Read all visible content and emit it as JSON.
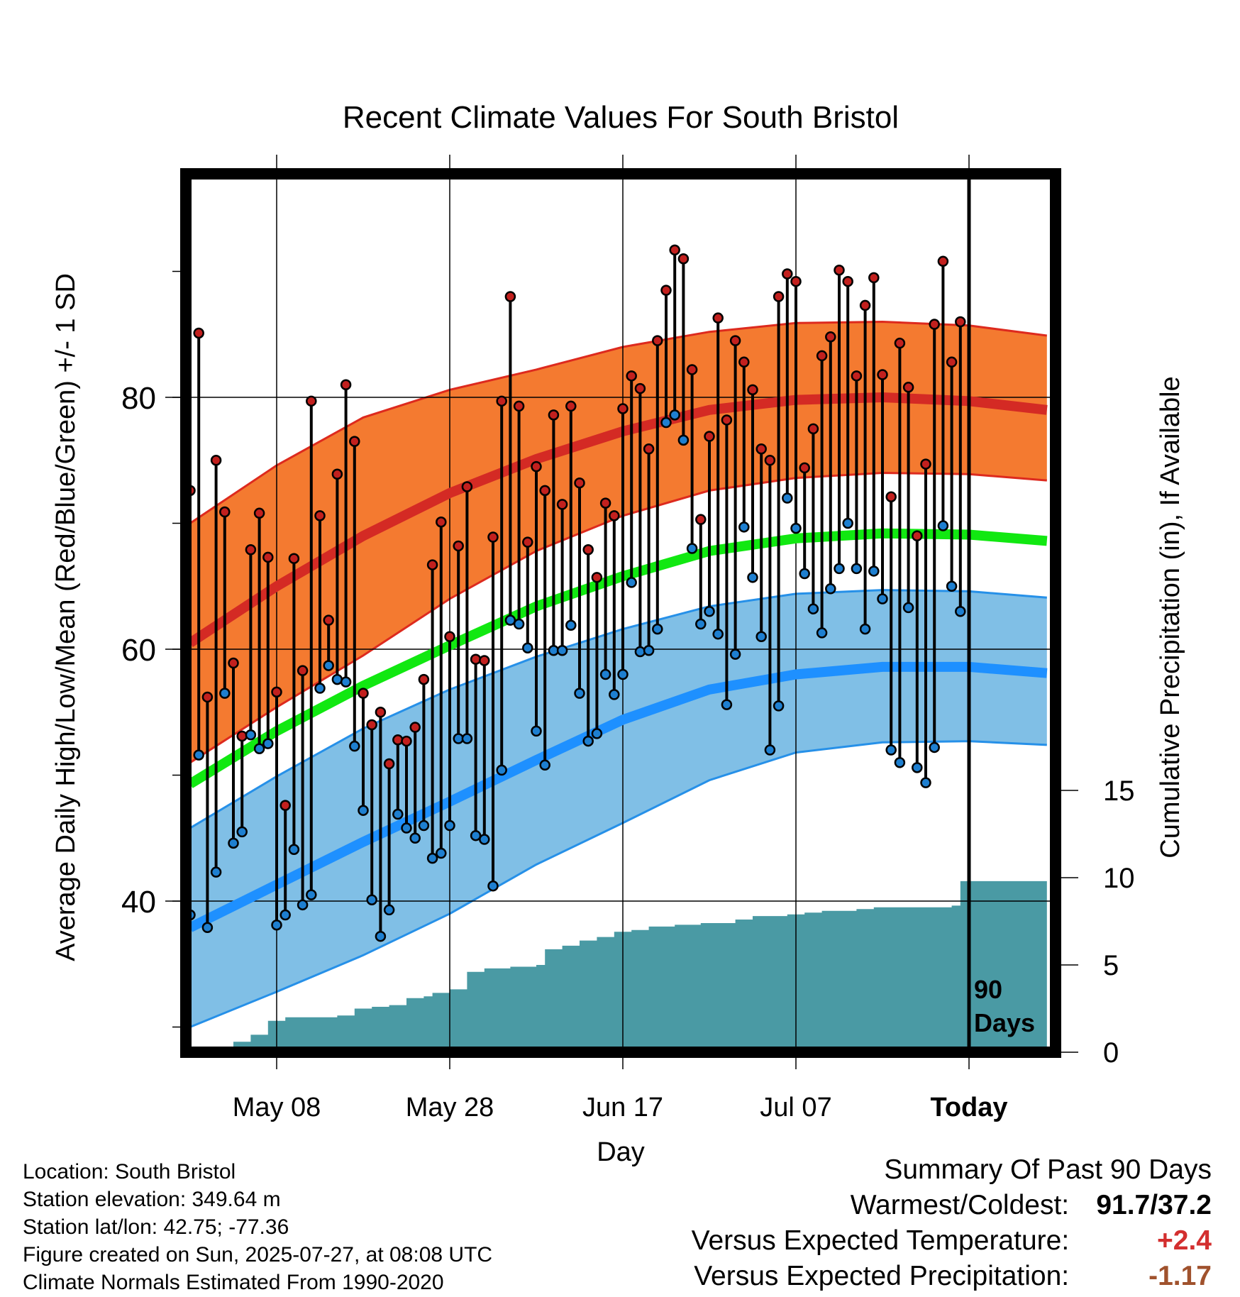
{
  "chart_data": {
    "type": "line",
    "title": "Recent Climate Values For South Bristol",
    "xlabel": "Day",
    "ylabel": "Average Daily High/Low/Mean (Red/Blue/Green) +/- 1 SD",
    "y2label": "Cumulative Precipitation (in), If Available",
    "x_range_days": [
      -90,
      9
    ],
    "ylim": [
      28,
      97
    ],
    "y2lim": [
      0,
      20.5
    ],
    "x_tick_labels": [
      {
        "day": -80,
        "label": "May 08"
      },
      {
        "day": -60,
        "label": "May 28"
      },
      {
        "day": -40,
        "label": "Jun 17"
      },
      {
        "day": -20,
        "label": "Jul 07"
      },
      {
        "day": 0,
        "label": "Today"
      }
    ],
    "y_tick_labels": [
      40,
      60,
      80
    ],
    "y2_tick_labels": [
      0,
      5,
      10,
      15
    ],
    "grid": true,
    "today_marker": {
      "day": 0,
      "label": [
        "90",
        "Days"
      ]
    },
    "normals": {
      "days": [
        -90,
        -80,
        -70,
        -60,
        -50,
        -40,
        -30,
        -20,
        -10,
        0,
        9
      ],
      "high_mean": [
        60.5,
        65.0,
        69.0,
        72.4,
        75.1,
        77.3,
        79.0,
        79.8,
        80.0,
        79.7,
        79.0
      ],
      "high_upper": [
        70.0,
        74.6,
        78.4,
        80.6,
        82.2,
        84.0,
        85.2,
        85.9,
        86.0,
        85.7,
        84.9
      ],
      "high_lower": [
        51.0,
        55.4,
        59.5,
        64.0,
        67.8,
        70.6,
        72.6,
        73.6,
        74.0,
        73.9,
        73.4
      ],
      "low_mean": [
        37.9,
        41.3,
        44.7,
        47.9,
        51.2,
        54.4,
        56.8,
        58.0,
        58.6,
        58.6,
        58.1
      ],
      "low_upper": [
        45.8,
        49.9,
        53.7,
        56.8,
        59.4,
        61.6,
        63.4,
        64.4,
        64.7,
        64.6,
        64.1
      ],
      "low_lower": [
        30.0,
        32.8,
        35.7,
        39.0,
        42.9,
        46.2,
        49.6,
        51.8,
        52.6,
        52.7,
        52.4
      ],
      "avg_mean": [
        49.3,
        53.5,
        57.1,
        60.3,
        63.4,
        65.8,
        67.8,
        68.8,
        69.2,
        69.1,
        68.6
      ]
    },
    "daily": {
      "start_day": -90,
      "high": [
        72.6,
        85.1,
        56.2,
        75.0,
        70.9,
        58.9,
        53.1,
        67.9,
        70.8,
        67.3,
        56.6,
        47.6,
        67.2,
        58.3,
        79.7,
        70.6,
        62.3,
        73.9,
        81.0,
        76.5,
        56.5,
        54.0,
        55.0,
        50.9,
        52.8,
        52.7,
        53.8,
        57.6,
        66.7,
        70.1,
        61.0,
        68.2,
        72.9,
        59.2,
        59.1,
        68.9,
        79.7,
        88.0,
        79.3,
        68.5,
        74.5,
        72.6,
        78.6,
        71.5,
        79.3,
        73.2,
        67.9,
        65.7,
        71.6,
        70.6,
        79.1,
        81.7,
        80.7,
        75.9,
        84.5,
        88.5,
        91.7,
        91.0,
        82.2,
        70.3,
        76.9,
        86.3,
        78.2,
        84.5,
        82.8,
        80.6,
        75.9,
        75.0,
        88.0,
        89.8,
        89.2,
        74.4,
        77.5,
        83.3,
        84.8,
        90.1,
        89.2,
        81.7,
        87.3,
        89.5,
        81.8,
        72.1,
        84.3,
        80.8,
        69.0,
        74.7,
        85.8,
        90.8,
        82.8,
        86.0
      ],
      "low": [
        38.9,
        51.6,
        37.9,
        42.3,
        56.5,
        44.6,
        45.5,
        53.2,
        52.1,
        52.5,
        38.1,
        38.9,
        44.1,
        39.7,
        40.5,
        56.9,
        58.7,
        57.6,
        57.4,
        52.3,
        47.2,
        40.1,
        37.2,
        39.3,
        46.9,
        45.8,
        45.0,
        46.0,
        43.4,
        43.8,
        46.0,
        52.9,
        52.9,
        45.2,
        44.9,
        41.2,
        50.4,
        62.3,
        62.0,
        60.1,
        53.5,
        50.8,
        59.9,
        59.9,
        61.9,
        56.5,
        52.7,
        53.3,
        58.0,
        56.4,
        58.0,
        65.3,
        59.8,
        59.9,
        61.6,
        78.0,
        78.6,
        76.6,
        68.0,
        62.0,
        63.0,
        61.2,
        55.6,
        59.6,
        69.7,
        65.7,
        61.0,
        52.0,
        55.5,
        72.0,
        69.6,
        66.0,
        63.2,
        61.3,
        64.8,
        66.4,
        70.0,
        66.4,
        61.6,
        66.2,
        64.0,
        52.0,
        51.0,
        63.3,
        50.6,
        49.4,
        52.2,
        69.8,
        65.0,
        63.0
      ]
    },
    "precip_cumulative": [
      {
        "day": -90,
        "value": 0
      },
      {
        "day": -86,
        "value": 0
      },
      {
        "day": -85,
        "value": 0.6
      },
      {
        "day": -83,
        "value": 1.0
      },
      {
        "day": -81,
        "value": 1.8
      },
      {
        "day": -79,
        "value": 2.0
      },
      {
        "day": -73,
        "value": 2.1
      },
      {
        "day": -71,
        "value": 2.5
      },
      {
        "day": -69,
        "value": 2.6
      },
      {
        "day": -67,
        "value": 2.7
      },
      {
        "day": -65,
        "value": 3.1
      },
      {
        "day": -63,
        "value": 3.2
      },
      {
        "day": -62,
        "value": 3.4
      },
      {
        "day": -60,
        "value": 3.6
      },
      {
        "day": -58,
        "value": 4.6
      },
      {
        "day": -56,
        "value": 4.8
      },
      {
        "day": -53,
        "value": 4.9
      },
      {
        "day": -50,
        "value": 5.0
      },
      {
        "day": -49,
        "value": 5.9
      },
      {
        "day": -47,
        "value": 6.1
      },
      {
        "day": -45,
        "value": 6.4
      },
      {
        "day": -43,
        "value": 6.6
      },
      {
        "day": -41,
        "value": 6.9
      },
      {
        "day": -39,
        "value": 7.0
      },
      {
        "day": -37,
        "value": 7.2
      },
      {
        "day": -34,
        "value": 7.3
      },
      {
        "day": -31,
        "value": 7.4
      },
      {
        "day": -27,
        "value": 7.6
      },
      {
        "day": -25,
        "value": 7.8
      },
      {
        "day": -21,
        "value": 7.9
      },
      {
        "day": -19,
        "value": 8.0
      },
      {
        "day": -17,
        "value": 8.1
      },
      {
        "day": -15,
        "value": 8.1
      },
      {
        "day": -13,
        "value": 8.2
      },
      {
        "day": -11,
        "value": 8.3
      },
      {
        "day": -6,
        "value": 8.3
      },
      {
        "day": -2,
        "value": 8.4
      },
      {
        "day": -1,
        "value": 9.8
      },
      {
        "day": 0,
        "value": 9.8
      },
      {
        "day": 9,
        "value": 9.8
      }
    ],
    "colors": {
      "high_band": "#f47a30",
      "high_band_edge": "#dd2a1e",
      "high_mean_line": "#d42a24",
      "low_band": "#80bfe6",
      "low_band_edge": "#2690e8",
      "low_mean_line": "#1e90ff",
      "avg_line": "#11e811",
      "precip": "#4a9aa4",
      "high_dot": "#c2201e",
      "low_dot": "#1e7fd0"
    }
  },
  "station_info": {
    "location": "Location: South Bristol",
    "elevation": "Station elevation: 349.64 m",
    "latlon": "Station lat/lon: 42.75; -77.36",
    "created": "Figure created on Sun, 2025-07-27, at 08:08 UTC",
    "normals": "Climate Normals Estimated From 1990-2020"
  },
  "summary": {
    "heading": "Summary Of Past 90 Days",
    "warm_cold_label": "Warmest/Coldest:",
    "warm_cold_value": "91.7/37.2",
    "temp_label": "Versus Expected Temperature:",
    "temp_value": "+2.4",
    "precip_label": "Versus Expected Precipitation:",
    "precip_value": "-1.17"
  }
}
